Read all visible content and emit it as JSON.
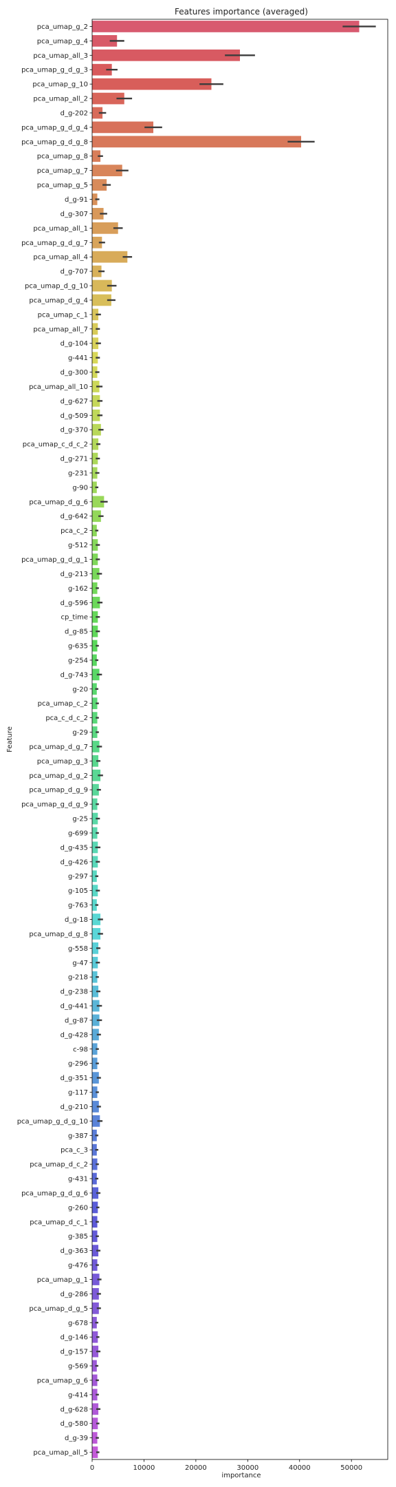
{
  "chart_data": {
    "type": "bar",
    "orientation": "horizontal",
    "title": "Features importance (averaged)",
    "xlabel": "importance",
    "ylabel": "Feature",
    "xlim": [
      0,
      57000
    ],
    "xticks": [
      0,
      10000,
      20000,
      30000,
      40000,
      50000
    ],
    "grid": false,
    "legend": "none",
    "error_bars": true,
    "categories": [
      "pca_umap_g_2",
      "pca_umap_g_4",
      "pca_umap_all_3",
      "pca_umap_g_d_g_3",
      "pca_umap_g_10",
      "pca_umap_all_2",
      "d_g-202",
      "pca_umap_g_d_g_4",
      "pca_umap_g_d_g_8",
      "pca_umap_g_8",
      "pca_umap_g_7",
      "pca_umap_g_5",
      "d_g-91",
      "d_g-307",
      "pca_umap_all_1",
      "pca_umap_g_d_g_7",
      "pca_umap_all_4",
      "d_g-707",
      "pca_umap_d_g_10",
      "pca_umap_d_g_4",
      "pca_umap_c_1",
      "pca_umap_all_7",
      "d_g-104",
      "g-441",
      "d_g-300",
      "pca_umap_all_10",
      "d_g-627",
      "d_g-509",
      "d_g-370",
      "pca_umap_c_d_c_2",
      "d_g-271",
      "g-231",
      "g-90",
      "pca_umap_d_g_6",
      "d_g-642",
      "pca_c_2",
      "g-512",
      "pca_umap_g_d_g_1",
      "d_g-213",
      "g-162",
      "d_g-596",
      "cp_time",
      "d_g-85",
      "g-635",
      "g-254",
      "d_g-743",
      "g-20",
      "pca_umap_c_2",
      "pca_c_d_c_2",
      "g-29",
      "pca_umap_d_g_7",
      "pca_umap_g_3",
      "pca_umap_d_g_2",
      "pca_umap_d_g_9",
      "pca_umap_g_d_g_9",
      "g-25",
      "g-699",
      "d_g-435",
      "d_g-426",
      "g-297",
      "g-105",
      "g-763",
      "d_g-18",
      "pca_umap_d_g_8",
      "g-558",
      "g-47",
      "g-218",
      "d_g-238",
      "d_g-441",
      "d_g-87",
      "d_g-428",
      "c-98",
      "g-296",
      "d_g-351",
      "g-117",
      "d_g-210",
      "pca_umap_g_d_g_10",
      "g-387",
      "pca_c_3",
      "pca_umap_d_c_2",
      "g-431",
      "pca_umap_g_d_g_6",
      "g-260",
      "pca_umap_d_c_1",
      "g-385",
      "d_g-363",
      "g-476",
      "pca_umap_g_1",
      "d_g-286",
      "pca_umap_d_g_5",
      "g-678",
      "d_g-146",
      "d_g-157",
      "g-569",
      "pca_umap_g_6",
      "g-414",
      "d_g-628",
      "d_g-580",
      "d_g-39",
      "pca_umap_all_5"
    ],
    "values": [
      51500,
      4800,
      28500,
      3800,
      23000,
      6200,
      2000,
      11800,
      40300,
      1600,
      5800,
      2800,
      1000,
      2200,
      5000,
      1900,
      6800,
      1800,
      3800,
      3700,
      1200,
      1100,
      1200,
      1100,
      1000,
      1400,
      1500,
      1500,
      1700,
      1200,
      1100,
      1000,
      900,
      2300,
      1700,
      900,
      1100,
      1100,
      1400,
      1000,
      1500,
      1100,
      1100,
      1000,
      900,
      1400,
      900,
      1000,
      1000,
      1000,
      1400,
      1200,
      1600,
      1300,
      1000,
      1100,
      1000,
      1100,
      1100,
      900,
      1100,
      900,
      1600,
      1600,
      1200,
      1100,
      1000,
      1200,
      1400,
      1400,
      1300,
      1000,
      1000,
      1300,
      1000,
      1300,
      1500,
      900,
      900,
      1000,
      900,
      1200,
      1100,
      1000,
      1000,
      1200,
      1000,
      1400,
      1300,
      1300,
      900,
      1100,
      1200,
      900,
      1000,
      1000,
      1200,
      1100,
      1000,
      1100
    ],
    "errors": [
      3200,
      1400,
      2900,
      1100,
      2300,
      1500,
      700,
      1700,
      2600,
      500,
      1200,
      800,
      400,
      700,
      900,
      600,
      900,
      600,
      900,
      800,
      500,
      400,
      500,
      400,
      400,
      600,
      500,
      500,
      500,
      400,
      400,
      400,
      300,
      700,
      500,
      300,
      400,
      400,
      500,
      300,
      500,
      400,
      400,
      300,
      300,
      500,
      300,
      300,
      300,
      300,
      500,
      400,
      500,
      400,
      300,
      400,
      300,
      500,
      400,
      300,
      400,
      300,
      500,
      500,
      400,
      400,
      300,
      400,
      500,
      500,
      400,
      300,
      300,
      400,
      300,
      400,
      500,
      300,
      300,
      300,
      300,
      400,
      300,
      300,
      300,
      400,
      300,
      400,
      400,
      400,
      300,
      300,
      400,
      300,
      300,
      300,
      400,
      300,
      300,
      300
    ]
  }
}
